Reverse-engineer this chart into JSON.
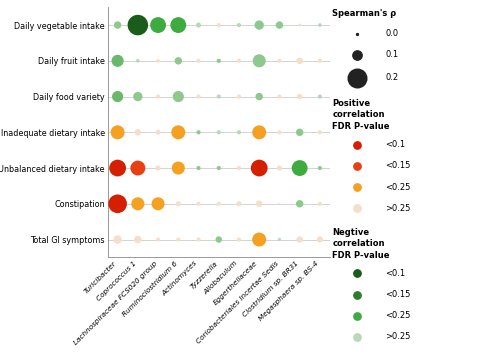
{
  "rows": [
    "Daily vegetable intake",
    "Daily fruit intake",
    "Daily food variety",
    "Inadequate dietary intake",
    "Unbalanced dietary intake",
    "Constipation",
    "Total GI symptoms"
  ],
  "cols": [
    "Turicibacter",
    "Coprococcus 1",
    "Lachnospiraceae FCS020 group",
    "Ruminoclostridium 6",
    "Actinomyces",
    "Tyzzerella",
    "Allobaculum",
    "Eggerthellaceae",
    "Coriobacteriales Incertae Sedis",
    "Clostridium sp. BR31",
    "Megasphaera sp. BS-4"
  ],
  "bubbles": [
    {
      "row": 0,
      "col": 0,
      "rho": 0.08,
      "color": "#8dc98d"
    },
    {
      "row": 0,
      "col": 1,
      "rho": 0.22,
      "color": "#1a5c1a"
    },
    {
      "row": 0,
      "col": 2,
      "rho": 0.17,
      "color": "#3dab3d"
    },
    {
      "row": 0,
      "col": 3,
      "rho": 0.17,
      "color": "#3dab3d"
    },
    {
      "row": 0,
      "col": 4,
      "rho": 0.055,
      "color": "#b8d9b8"
    },
    {
      "row": 0,
      "col": 5,
      "rho": 0.045,
      "color": "#f5dfc8"
    },
    {
      "row": 0,
      "col": 6,
      "rho": 0.045,
      "color": "#b8d9b8"
    },
    {
      "row": 0,
      "col": 7,
      "rho": 0.1,
      "color": "#8dc98d"
    },
    {
      "row": 0,
      "col": 8,
      "rho": 0.08,
      "color": "#8dc98d"
    },
    {
      "row": 0,
      "col": 9,
      "rho": 0.03,
      "color": "#f5dfc8"
    },
    {
      "row": 0,
      "col": 10,
      "rho": 0.04,
      "color": "#b8d9b8"
    },
    {
      "row": 1,
      "col": 0,
      "rho": 0.13,
      "color": "#6ab86a"
    },
    {
      "row": 1,
      "col": 1,
      "rho": 0.04,
      "color": "#b8d9b8"
    },
    {
      "row": 1,
      "col": 2,
      "rho": 0.04,
      "color": "#f5dfc8"
    },
    {
      "row": 1,
      "col": 3,
      "rho": 0.08,
      "color": "#8dc98d"
    },
    {
      "row": 1,
      "col": 4,
      "rho": 0.045,
      "color": "#f5dfc8"
    },
    {
      "row": 1,
      "col": 5,
      "rho": 0.045,
      "color": "#8dc98d"
    },
    {
      "row": 1,
      "col": 6,
      "rho": 0.045,
      "color": "#f5dfc8"
    },
    {
      "row": 1,
      "col": 7,
      "rho": 0.14,
      "color": "#8dc98d"
    },
    {
      "row": 1,
      "col": 8,
      "rho": 0.045,
      "color": "#f5dfc8"
    },
    {
      "row": 1,
      "col": 9,
      "rho": 0.07,
      "color": "#f5dfc8"
    },
    {
      "row": 1,
      "col": 10,
      "rho": 0.045,
      "color": "#f5dfc8"
    },
    {
      "row": 2,
      "col": 0,
      "rho": 0.12,
      "color": "#6ab86a"
    },
    {
      "row": 2,
      "col": 1,
      "rho": 0.1,
      "color": "#8dc98d"
    },
    {
      "row": 2,
      "col": 2,
      "rho": 0.045,
      "color": "#f5dfc8"
    },
    {
      "row": 2,
      "col": 3,
      "rho": 0.12,
      "color": "#8dc98d"
    },
    {
      "row": 2,
      "col": 4,
      "rho": 0.045,
      "color": "#f5dfc8"
    },
    {
      "row": 2,
      "col": 5,
      "rho": 0.045,
      "color": "#b8d9b8"
    },
    {
      "row": 2,
      "col": 6,
      "rho": 0.045,
      "color": "#f5dfc8"
    },
    {
      "row": 2,
      "col": 7,
      "rho": 0.08,
      "color": "#8dc98d"
    },
    {
      "row": 2,
      "col": 8,
      "rho": 0.045,
      "color": "#f5dfc8"
    },
    {
      "row": 2,
      "col": 9,
      "rho": 0.06,
      "color": "#f5dfc8"
    },
    {
      "row": 2,
      "col": 10,
      "rho": 0.045,
      "color": "#b8d9b8"
    },
    {
      "row": 3,
      "col": 0,
      "rho": 0.15,
      "color": "#f5a020"
    },
    {
      "row": 3,
      "col": 1,
      "rho": 0.07,
      "color": "#f5dfc8"
    },
    {
      "row": 3,
      "col": 2,
      "rho": 0.055,
      "color": "#f5dfc8"
    },
    {
      "row": 3,
      "col": 3,
      "rho": 0.15,
      "color": "#f5a020"
    },
    {
      "row": 3,
      "col": 4,
      "rho": 0.045,
      "color": "#8dc98d"
    },
    {
      "row": 3,
      "col": 5,
      "rho": 0.045,
      "color": "#b8d9b8"
    },
    {
      "row": 3,
      "col": 6,
      "rho": 0.045,
      "color": "#b8d9b8"
    },
    {
      "row": 3,
      "col": 7,
      "rho": 0.15,
      "color": "#f5a020"
    },
    {
      "row": 3,
      "col": 8,
      "rho": 0.045,
      "color": "#f5dfc8"
    },
    {
      "row": 3,
      "col": 9,
      "rho": 0.08,
      "color": "#8dc98d"
    },
    {
      "row": 3,
      "col": 10,
      "rho": 0.045,
      "color": "#f5dfc8"
    },
    {
      "row": 4,
      "col": 0,
      "rho": 0.18,
      "color": "#d42000"
    },
    {
      "row": 4,
      "col": 1,
      "rho": 0.16,
      "color": "#e84010"
    },
    {
      "row": 4,
      "col": 2,
      "rho": 0.055,
      "color": "#f5dfc8"
    },
    {
      "row": 4,
      "col": 3,
      "rho": 0.14,
      "color": "#f5a020"
    },
    {
      "row": 4,
      "col": 4,
      "rho": 0.045,
      "color": "#8dc98d"
    },
    {
      "row": 4,
      "col": 5,
      "rho": 0.045,
      "color": "#8dc98d"
    },
    {
      "row": 4,
      "col": 6,
      "rho": 0.045,
      "color": "#f5dfc8"
    },
    {
      "row": 4,
      "col": 7,
      "rho": 0.18,
      "color": "#d42000"
    },
    {
      "row": 4,
      "col": 8,
      "rho": 0.055,
      "color": "#f5dfc8"
    },
    {
      "row": 4,
      "col": 9,
      "rho": 0.17,
      "color": "#3dab3d"
    },
    {
      "row": 4,
      "col": 10,
      "rho": 0.045,
      "color": "#8dc98d"
    },
    {
      "row": 5,
      "col": 0,
      "rho": 0.2,
      "color": "#d42000"
    },
    {
      "row": 5,
      "col": 1,
      "rho": 0.14,
      "color": "#f5a020"
    },
    {
      "row": 5,
      "col": 2,
      "rho": 0.14,
      "color": "#f5a020"
    },
    {
      "row": 5,
      "col": 3,
      "rho": 0.055,
      "color": "#f5dfc8"
    },
    {
      "row": 5,
      "col": 4,
      "rho": 0.045,
      "color": "#f5dfc8"
    },
    {
      "row": 5,
      "col": 5,
      "rho": 0.045,
      "color": "#f5dfc8"
    },
    {
      "row": 5,
      "col": 6,
      "rho": 0.055,
      "color": "#f5dfc8"
    },
    {
      "row": 5,
      "col": 7,
      "rho": 0.07,
      "color": "#f5dfc8"
    },
    {
      "row": 5,
      "col": 8,
      "rho": 0.02,
      "color": "#f5dfc8"
    },
    {
      "row": 5,
      "col": 9,
      "rho": 0.08,
      "color": "#8dc98d"
    },
    {
      "row": 5,
      "col": 10,
      "rho": 0.045,
      "color": "#f5dfc8"
    },
    {
      "row": 6,
      "col": 0,
      "rho": 0.09,
      "color": "#f5dfc8"
    },
    {
      "row": 6,
      "col": 1,
      "rho": 0.08,
      "color": "#f5dfc8"
    },
    {
      "row": 6,
      "col": 2,
      "rho": 0.045,
      "color": "#f5dfc8"
    },
    {
      "row": 6,
      "col": 3,
      "rho": 0.045,
      "color": "#f5dfc8"
    },
    {
      "row": 6,
      "col": 4,
      "rho": 0.045,
      "color": "#f5dfc8"
    },
    {
      "row": 6,
      "col": 5,
      "rho": 0.07,
      "color": "#8dc98d"
    },
    {
      "row": 6,
      "col": 6,
      "rho": 0.045,
      "color": "#f5dfc8"
    },
    {
      "row": 6,
      "col": 7,
      "rho": 0.15,
      "color": "#f5a020"
    },
    {
      "row": 6,
      "col": 8,
      "rho": 0.035,
      "color": "#b8d9b8"
    },
    {
      "row": 6,
      "col": 9,
      "rho": 0.07,
      "color": "#f5dfc8"
    },
    {
      "row": 6,
      "col": 10,
      "rho": 0.065,
      "color": "#f5dfc8"
    }
  ],
  "size_ref": 0.2,
  "size_max_pt": 180,
  "legend_size_rhos": [
    0.0,
    0.1,
    0.2
  ],
  "legend_size_labels": [
    "0.0",
    "0.1",
    "0.2"
  ],
  "legend_pos_colors": [
    "#d42000",
    "#e84010",
    "#f5a020",
    "#f5dfc8"
  ],
  "legend_pos_labels": [
    "<0.1",
    "<0.15",
    "<0.25",
    ">0.25"
  ],
  "legend_neg_colors": [
    "#1a5c1a",
    "#2e7d2e",
    "#3dab3d",
    "#b8d9b8"
  ],
  "legend_neg_labels": [
    "<0.1",
    "<0.15",
    "<0.25",
    ">0.25"
  ],
  "bg_color": "#ffffff",
  "grid_color": "#cccccc",
  "spine_color": "#888888"
}
